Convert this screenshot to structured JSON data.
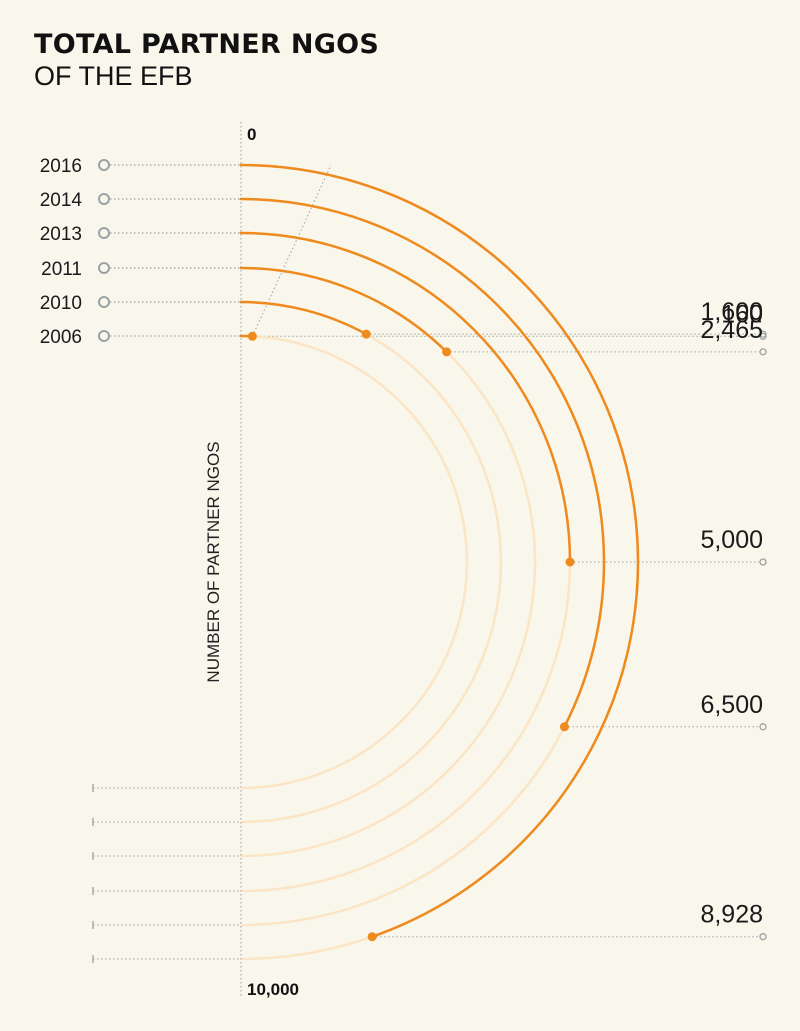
{
  "title": "TOTAL PARTNER NGOS",
  "subtitle": "OF THE EFB",
  "colors": {
    "background": "#f9f6ec",
    "arc_active": "#ee8a1e",
    "arc_track": "#fbe5c4",
    "leader": "#9aa3a3",
    "text": "#1a1a1a"
  },
  "chart_data": {
    "type": "radial-bar",
    "title": "TOTAL PARTNER NGOS",
    "subtitle": "OF THE EFB",
    "axis_label": "NUMBER OF PARTNER NGOS",
    "axis_min_label": "0",
    "axis_max_label": "10,000",
    "range": [
      0,
      10000
    ],
    "categories": [
      "2016",
      "2014",
      "2013",
      "2011",
      "2010",
      "2006"
    ],
    "values": [
      8928,
      6500,
      5000,
      2465,
      1600,
      160
    ],
    "value_labels": [
      "8,928",
      "6,500",
      "5,000",
      "2,465",
      "1,600",
      "160"
    ]
  }
}
